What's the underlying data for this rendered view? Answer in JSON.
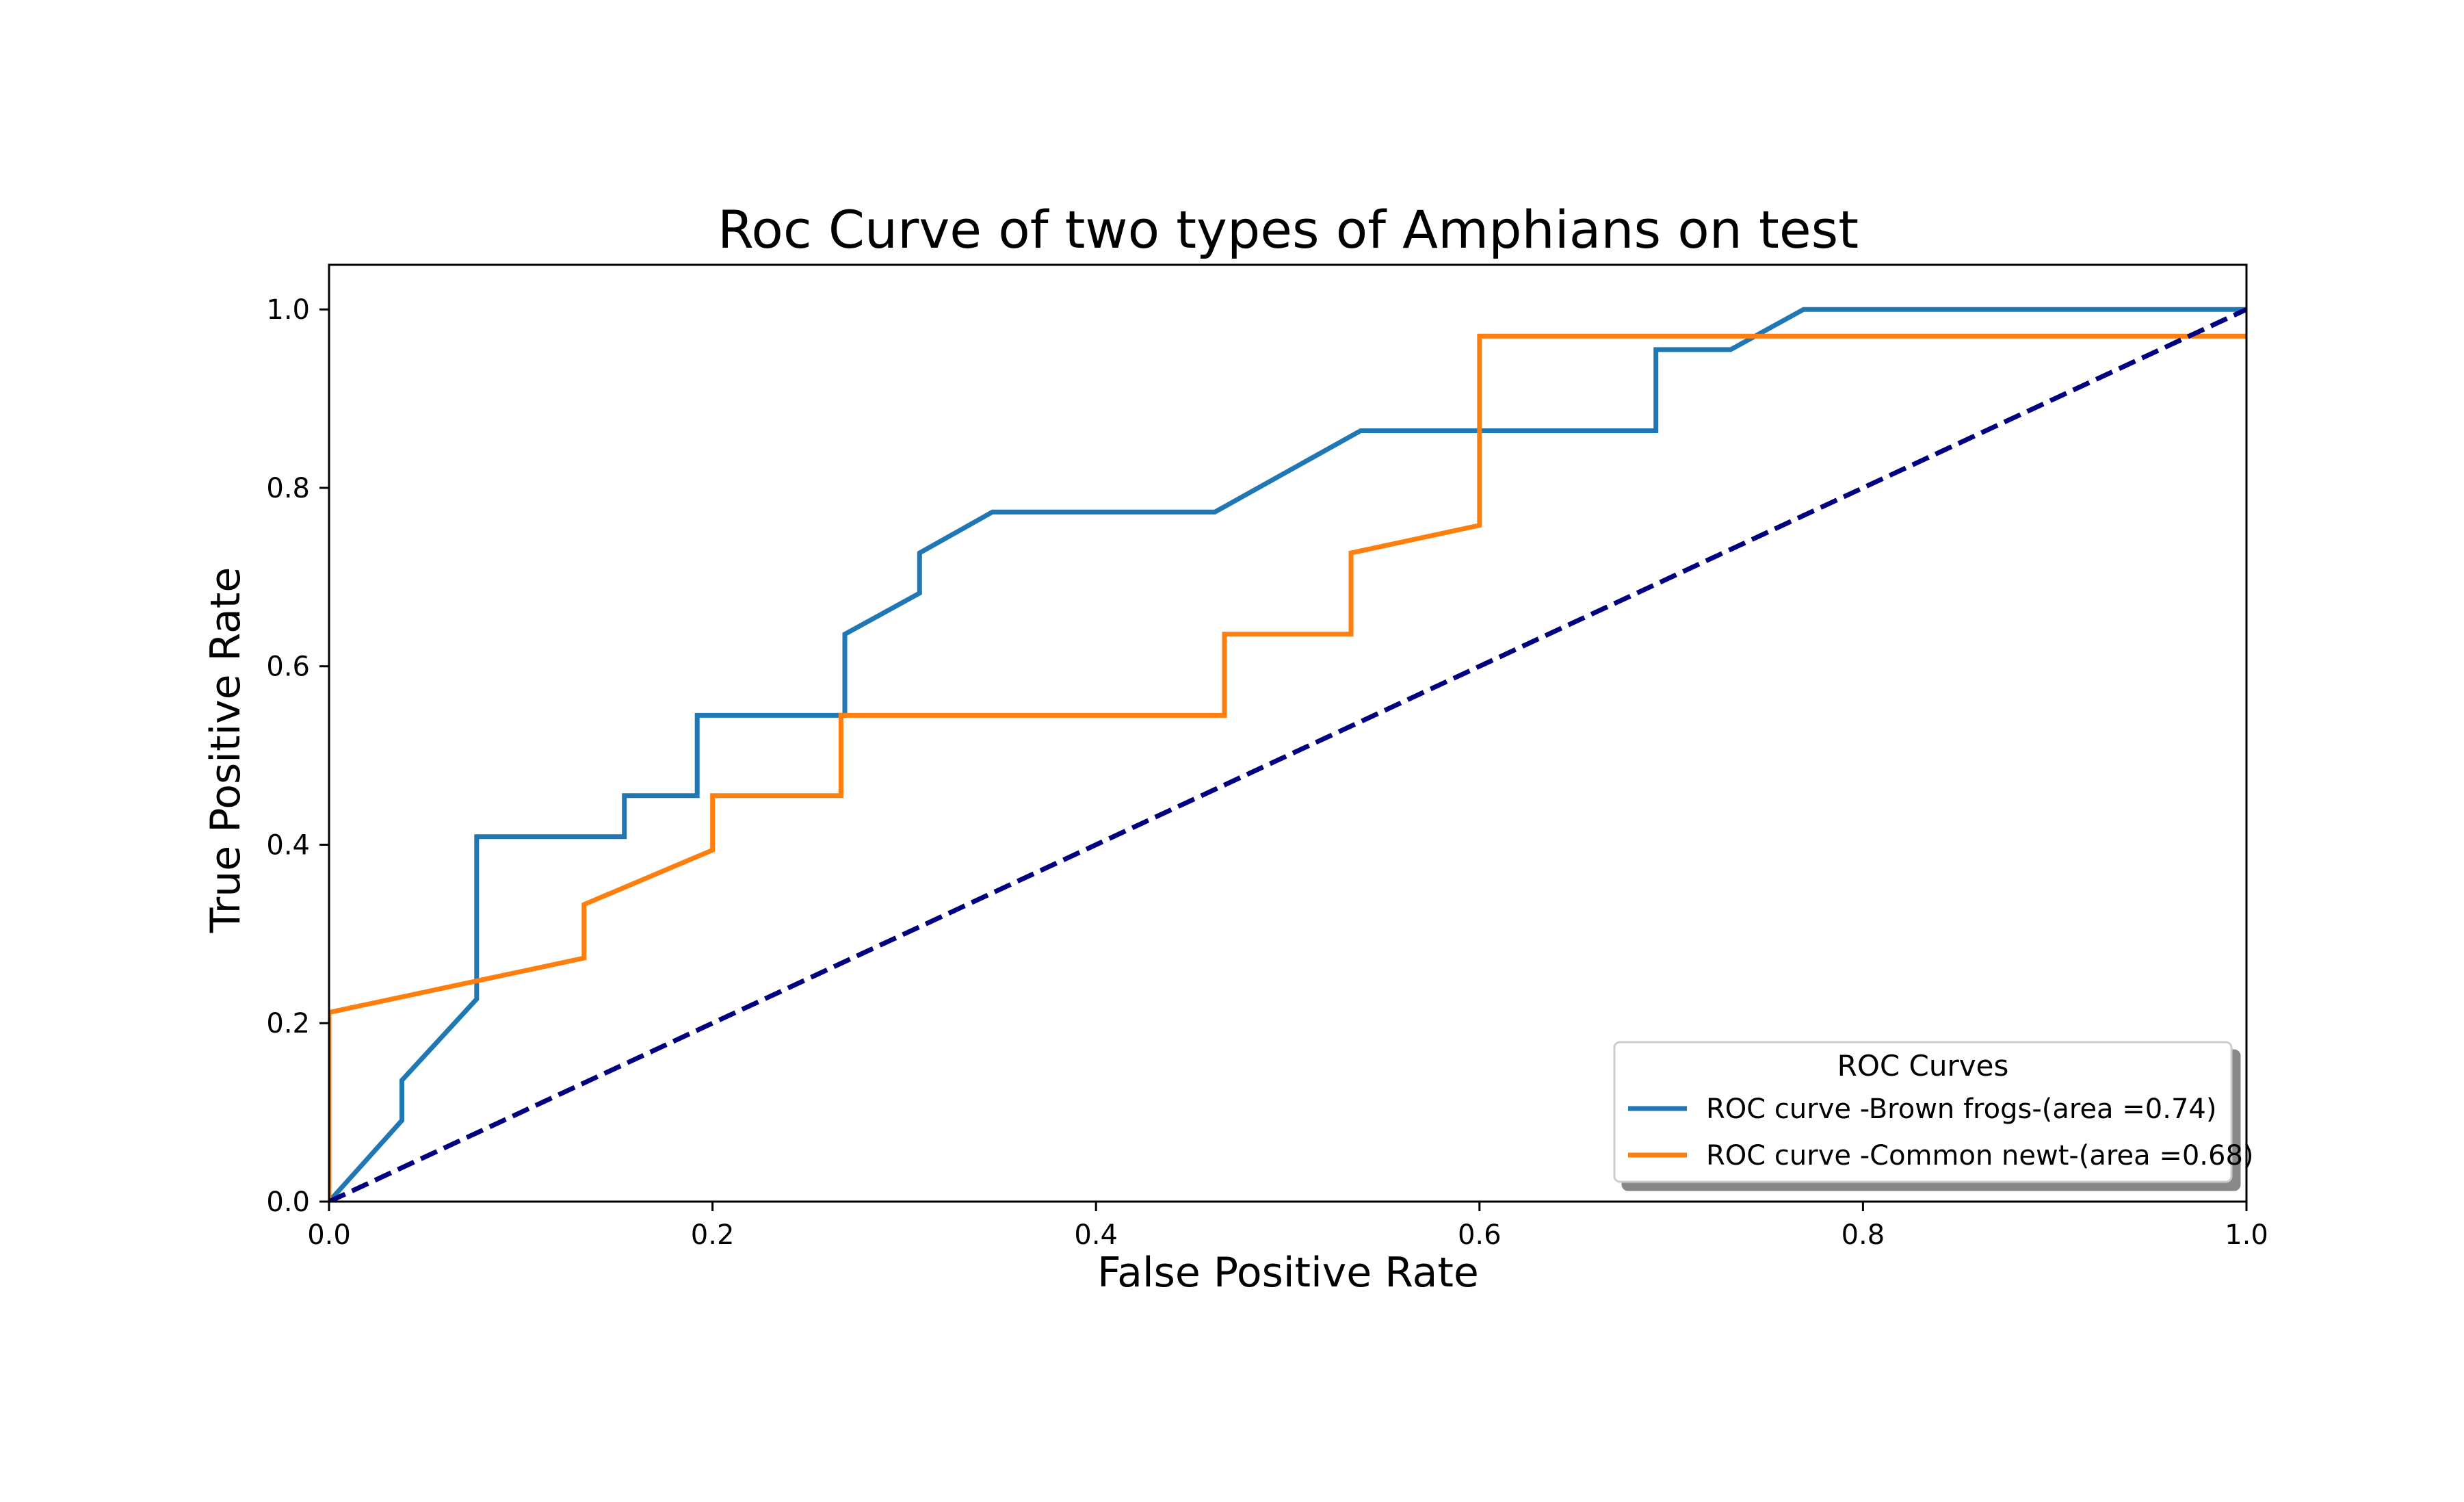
{
  "chart_data": {
    "type": "line",
    "title": "Roc Curve of two types of Amphians on test",
    "xlabel": "False Positive Rate",
    "ylabel": "True Positive Rate",
    "xlim": [
      0.0,
      1.0
    ],
    "ylim": [
      0.0,
      1.05
    ],
    "xticks": [
      "0.0",
      "0.2",
      "0.4",
      "0.6",
      "0.8",
      "1.0"
    ],
    "yticks": [
      "0.0",
      "0.2",
      "0.4",
      "0.6",
      "0.8",
      "1.0"
    ],
    "grid": false,
    "legend": {
      "title": "ROC Curves",
      "placement": "lower right"
    },
    "series": [
      {
        "name": "ROC curve -Brown frogs-(area =0.74)",
        "color": "#1f77b4",
        "x": [
          0.0,
          0.038,
          0.038,
          0.077,
          0.077,
          0.154,
          0.154,
          0.192,
          0.192,
          0.269,
          0.269,
          0.308,
          0.308,
          0.346,
          0.462,
          0.538,
          0.692,
          0.692,
          0.731,
          0.769,
          1.0
        ],
        "y": [
          0.0,
          0.091,
          0.136,
          0.227,
          0.409,
          0.409,
          0.455,
          0.455,
          0.545,
          0.545,
          0.636,
          0.682,
          0.727,
          0.773,
          0.773,
          0.864,
          0.864,
          0.955,
          0.955,
          1.0,
          1.0
        ]
      },
      {
        "name": "ROC curve -Common newt-(area =0.68)",
        "color": "#ff7f0e",
        "x": [
          0.0,
          0.0,
          0.133,
          0.133,
          0.2,
          0.2,
          0.267,
          0.267,
          0.467,
          0.467,
          0.533,
          0.533,
          0.6,
          0.6,
          1.0
        ],
        "y": [
          0.0,
          0.212,
          0.273,
          0.333,
          0.394,
          0.455,
          0.455,
          0.545,
          0.545,
          0.636,
          0.636,
          0.727,
          0.758,
          0.97,
          0.97
        ]
      },
      {
        "name": "",
        "color": "#000080",
        "style": "dashed",
        "x": [
          0.0,
          1.0
        ],
        "y": [
          0.0,
          1.0
        ]
      }
    ]
  }
}
